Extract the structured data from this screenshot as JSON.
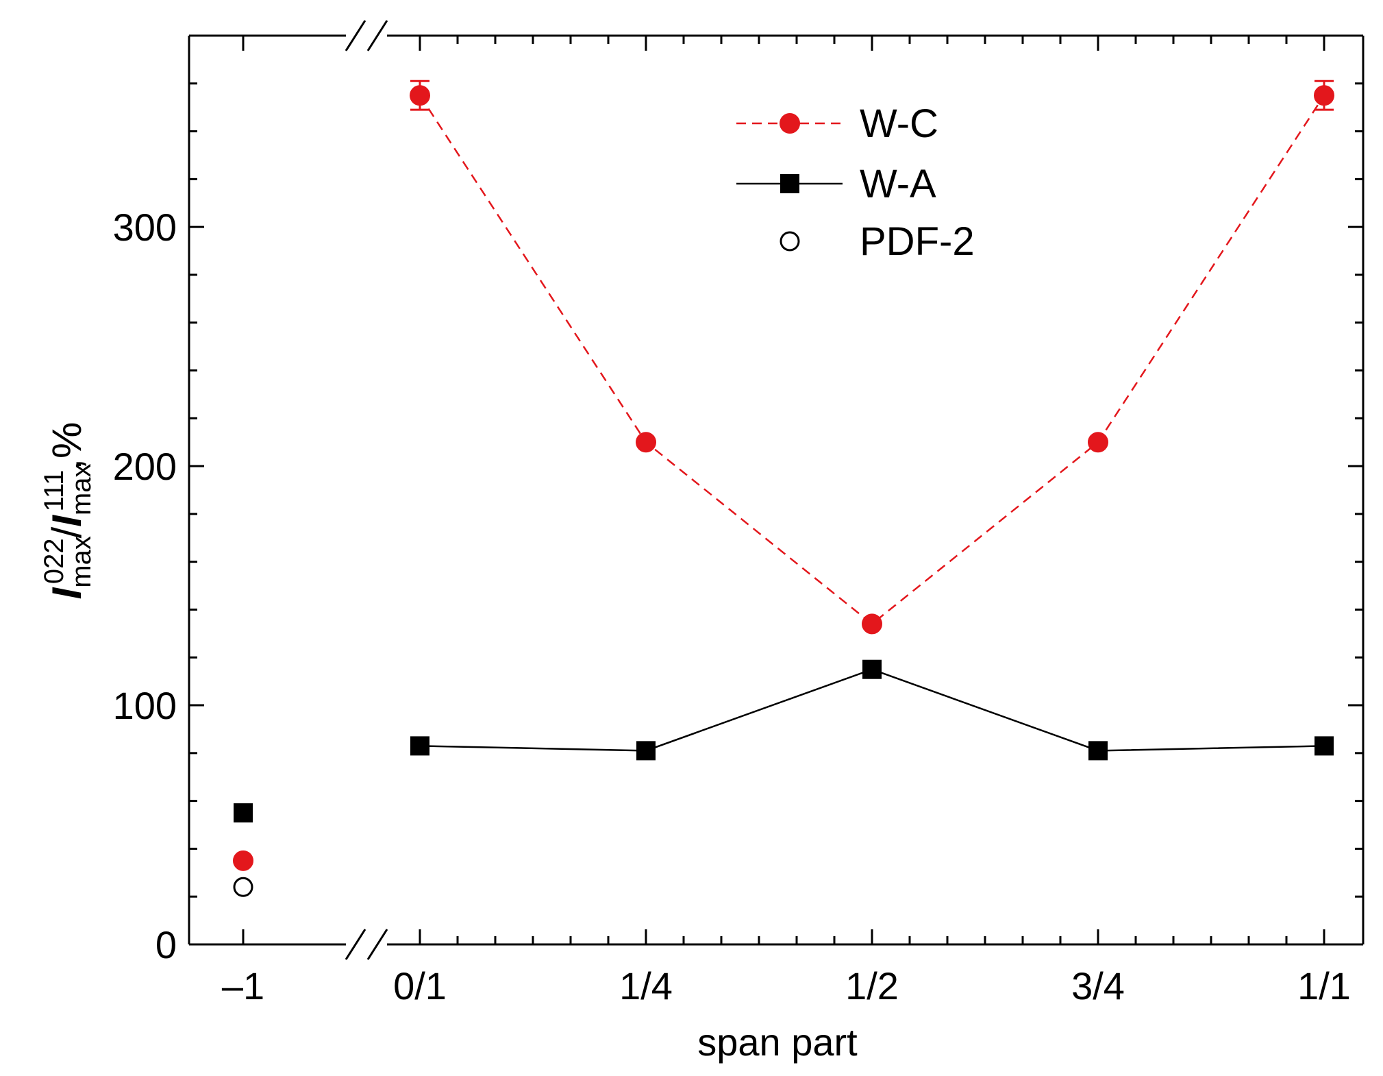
{
  "chart_data": {
    "type": "line",
    "categories": [
      "–1",
      "0/1",
      "1/4",
      "1/2",
      "3/4",
      "1/1"
    ],
    "xlabel": "span part",
    "ylabel": {
      "parts": [
        {
          "text": "I",
          "style": "italic"
        },
        {
          "text": "max",
          "style": "sub"
        },
        {
          "text": "022",
          "style": "sup"
        },
        {
          "text": "/",
          "style": "normal"
        },
        {
          "text": "I",
          "style": "italic"
        },
        {
          "text": "max",
          "style": "sub"
        },
        {
          "text": "111",
          "style": "sup"
        },
        {
          "text": ",%",
          "style": "normal"
        }
      ]
    },
    "ylim": [
      0,
      380
    ],
    "yticks": [
      "0",
      "100",
      "200",
      "300"
    ],
    "axis_break": "between –1 and 0/1",
    "legend_position": "top-center",
    "series": [
      {
        "name": "W-C",
        "color": "#e3171c",
        "marker": "filled-circle",
        "line": "dashed",
        "values": [
          35,
          355,
          210,
          134,
          210,
          355
        ],
        "errors": [
          0,
          6,
          0,
          0,
          0,
          6
        ],
        "connected_from_index": 1
      },
      {
        "name": "W-A",
        "color": "#000000",
        "marker": "filled-square",
        "line": "solid",
        "values": [
          55,
          83,
          81,
          115,
          81,
          83
        ],
        "errors": [
          0,
          0,
          0,
          0,
          0,
          0
        ],
        "connected_from_index": 1
      },
      {
        "name": "PDF-2",
        "color": "#000000",
        "marker": "open-circle",
        "line": "none",
        "values": [
          24,
          null,
          null,
          null,
          null,
          null
        ],
        "errors": [
          0,
          0,
          0,
          0,
          0,
          0
        ],
        "connected_from_index": 99
      }
    ]
  }
}
